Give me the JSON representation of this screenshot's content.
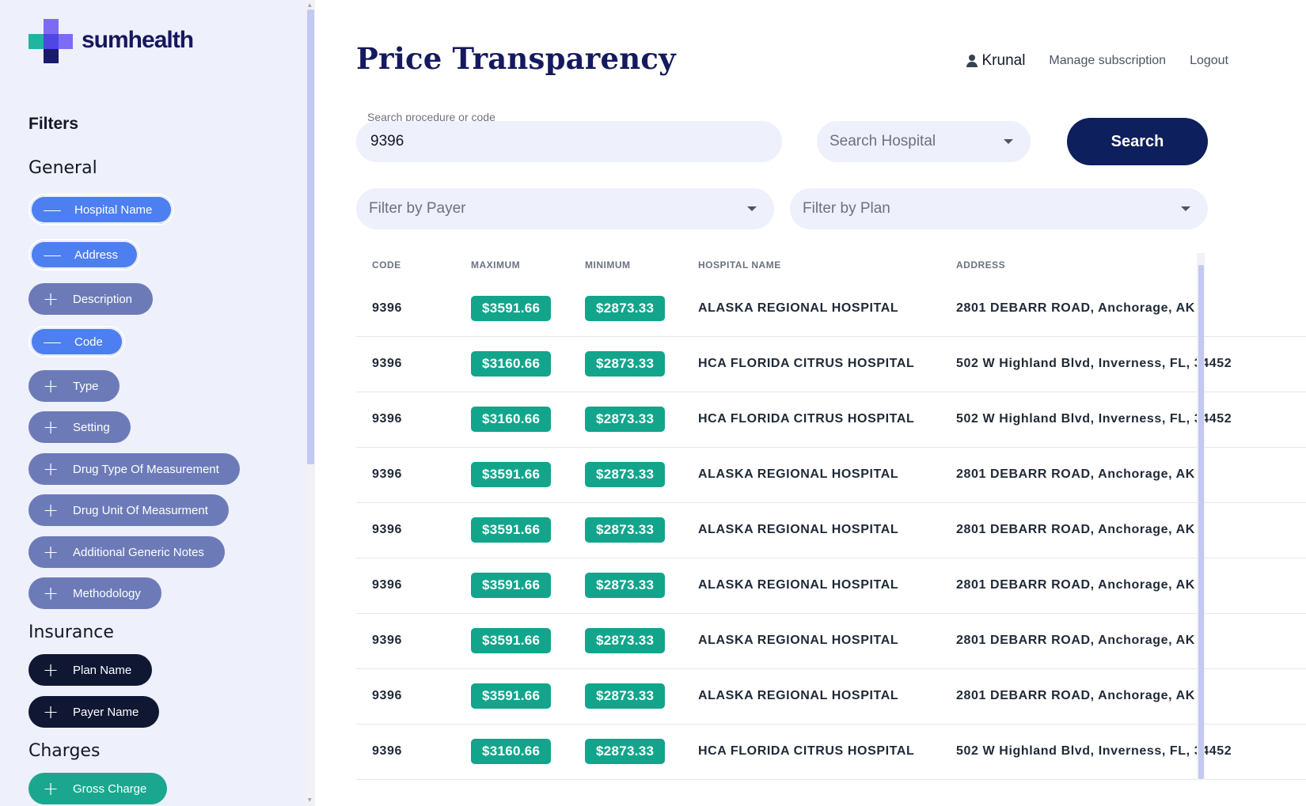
{
  "brand": {
    "name": "sumhealth",
    "colors": {
      "primary": "#151a5e",
      "accent": "#4d7ff0",
      "teal": "#12a58c",
      "purple": "#7c6cf5"
    }
  },
  "sidebar": {
    "filters_heading": "Filters",
    "general_heading": "General",
    "general_filters": [
      {
        "label": "Hospital Name",
        "state": "active",
        "symbol": "—"
      },
      {
        "label": "Address",
        "state": "active",
        "symbol": "—"
      },
      {
        "label": "Description",
        "state": "inactive",
        "symbol": "+"
      },
      {
        "label": "Code",
        "state": "active",
        "symbol": "—"
      },
      {
        "label": "Type",
        "state": "inactive",
        "symbol": "+"
      },
      {
        "label": "Setting",
        "state": "inactive",
        "symbol": "+"
      },
      {
        "label": "Drug Type Of Measurement",
        "state": "inactive",
        "symbol": "+"
      },
      {
        "label": "Drug Unit Of Measurment",
        "state": "inactive",
        "symbol": "+"
      },
      {
        "label": "Additional Generic Notes",
        "state": "inactive",
        "symbol": "+"
      },
      {
        "label": "Methodology",
        "state": "inactive",
        "symbol": "+"
      }
    ],
    "insurance_heading": "Insurance",
    "insurance_filters": [
      {
        "label": "Plan Name",
        "symbol": "+"
      },
      {
        "label": "Payer Name",
        "symbol": "+"
      }
    ],
    "charges_heading": "Charges",
    "charges_filters": [
      {
        "label": "Gross Charge",
        "symbol": "+"
      }
    ]
  },
  "header": {
    "title": "Price Transparency",
    "user_name": "Krunal",
    "manage_subscription": "Manage subscription",
    "logout": "Logout"
  },
  "search": {
    "procedure_label": "Search procedure or code",
    "procedure_value": "9396",
    "hospital_placeholder": "Search Hospital",
    "button_label": "Search",
    "payer_placeholder": "Filter by Payer",
    "plan_placeholder": "Filter by Plan"
  },
  "table": {
    "columns": [
      "CODE",
      "MAXIMUM",
      "MINIMUM",
      "HOSPITAL NAME",
      "ADDRESS"
    ],
    "rows": [
      {
        "code": "9396",
        "max": "$3591.66",
        "min": "$2873.33",
        "hospital": "ALASKA REGIONAL HOSPITAL",
        "address": "2801 DEBARR ROAD, Anchorage, AK"
      },
      {
        "code": "9396",
        "max": "$3160.66",
        "min": "$2873.33",
        "hospital": "HCA FLORIDA CITRUS HOSPITAL",
        "address": "502 W Highland Blvd, Inverness, FL, 34452"
      },
      {
        "code": "9396",
        "max": "$3160.66",
        "min": "$2873.33",
        "hospital": "HCA FLORIDA CITRUS HOSPITAL",
        "address": "502 W Highland Blvd, Inverness, FL, 34452"
      },
      {
        "code": "9396",
        "max": "$3591.66",
        "min": "$2873.33",
        "hospital": "ALASKA REGIONAL HOSPITAL",
        "address": "2801 DEBARR ROAD, Anchorage, AK"
      },
      {
        "code": "9396",
        "max": "$3591.66",
        "min": "$2873.33",
        "hospital": "ALASKA REGIONAL HOSPITAL",
        "address": "2801 DEBARR ROAD, Anchorage, AK"
      },
      {
        "code": "9396",
        "max": "$3591.66",
        "min": "$2873.33",
        "hospital": "ALASKA REGIONAL HOSPITAL",
        "address": "2801 DEBARR ROAD, Anchorage, AK"
      },
      {
        "code": "9396",
        "max": "$3591.66",
        "min": "$2873.33",
        "hospital": "ALASKA REGIONAL HOSPITAL",
        "address": "2801 DEBARR ROAD, Anchorage, AK"
      },
      {
        "code": "9396",
        "max": "$3591.66",
        "min": "$2873.33",
        "hospital": "ALASKA REGIONAL HOSPITAL",
        "address": "2801 DEBARR ROAD, Anchorage, AK"
      },
      {
        "code": "9396",
        "max": "$3160.66",
        "min": "$2873.33",
        "hospital": "HCA FLORIDA CITRUS HOSPITAL",
        "address": "502 W Highland Blvd, Inverness, FL, 34452"
      }
    ]
  }
}
